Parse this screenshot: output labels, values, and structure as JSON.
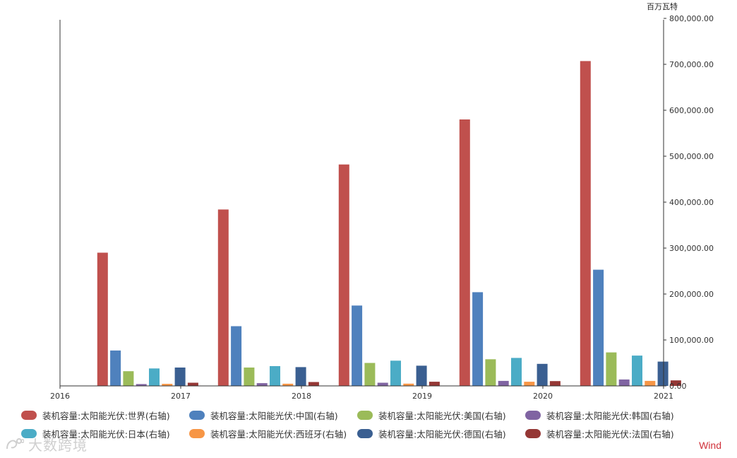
{
  "chart_data": {
    "type": "bar",
    "unit": "百万瓦特",
    "categories": [
      "2017",
      "2018",
      "2019",
      "2020",
      "2021"
    ],
    "x_axis_ticks": [
      "2016",
      "2017",
      "2018",
      "2019",
      "2020",
      "2021"
    ],
    "ylim": [
      0,
      800000
    ],
    "y_ticks": [
      "0.00",
      "100,000.00",
      "200,000.00",
      "300,000.00",
      "400,000.00",
      "500,000.00",
      "600,000.00",
      "700,000.00",
      "800,000.00"
    ],
    "y_axis_side": "right",
    "legend_position": "bottom",
    "grid": false,
    "series": [
      {
        "name": "装机容量:太阳能光伏:世界(右轴)",
        "color": "#c0504d",
        "values": [
          290000,
          384000,
          482000,
          580000,
          707000
        ]
      },
      {
        "name": "装机容量:太阳能光伏:中国(右轴)",
        "color": "#4f81bd",
        "values": [
          77000,
          130000,
          175000,
          204000,
          253000
        ]
      },
      {
        "name": "装机容量:太阳能光伏:美国(右轴)",
        "color": "#9bbb59",
        "values": [
          32000,
          40000,
          50000,
          58000,
          73000
        ]
      },
      {
        "name": "装机容量:太阳能光伏:韩国(右轴)",
        "color": "#8064a2",
        "values": [
          4000,
          6000,
          7000,
          11000,
          14000
        ]
      },
      {
        "name": "装机容量:太阳能光伏:日本(右轴)",
        "color": "#4bacc6",
        "values": [
          38000,
          43000,
          55000,
          61000,
          66000
        ]
      },
      {
        "name": "装机容量:太阳能光伏:西班牙(右轴)",
        "color": "#f79646",
        "values": [
          4500,
          4700,
          5000,
          9000,
          11000
        ]
      },
      {
        "name": "装机容量:太阳能光伏:德国(右轴)",
        "color": "#3a5f91",
        "values": [
          40000,
          41000,
          44000,
          48000,
          53000
        ]
      },
      {
        "name": "装机容量:太阳能光伏:法国(右轴)",
        "color": "#953735",
        "values": [
          7000,
          8500,
          9000,
          10500,
          12000
        ]
      }
    ]
  },
  "brand": "Wind",
  "watermark": "大数跨境"
}
